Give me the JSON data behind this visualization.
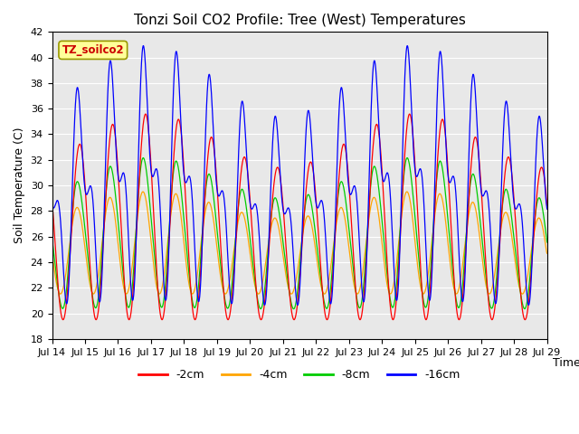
{
  "title": "Tonzi Soil CO2 Profile: Tree (West) Temperatures",
  "ylabel": "Soil Temperature (C)",
  "xlabel": "Time",
  "legend_label": "TZ_soilco2",
  "legend_entries": [
    "-2cm",
    "-4cm",
    "-8cm",
    "-16cm"
  ],
  "line_colors": [
    "#ff0000",
    "#ffa500",
    "#00cc00",
    "#0000ff"
  ],
  "ylim": [
    18,
    42
  ],
  "xlim_start": 0,
  "xlim_end": 15,
  "x_tick_labels": [
    "Jul 14",
    "Jul 15",
    "Jul 16",
    "Jul 17",
    "Jul 18",
    "Jul 19",
    "Jul 20",
    "Jul 21",
    "Jul 22",
    "Jul 23",
    "Jul 24",
    "Jul 25",
    "Jul 26",
    "Jul 27",
    "Jul 28",
    "Jul 29"
  ],
  "bg_color": "#e8e8e8",
  "fig_bg": "#ffffff",
  "title_fontsize": 11,
  "axis_label_fontsize": 9,
  "tick_fontsize": 8,
  "legend_box_color": "#ffff99",
  "legend_box_edge": "#999900",
  "legend_text_color": "#cc0000"
}
